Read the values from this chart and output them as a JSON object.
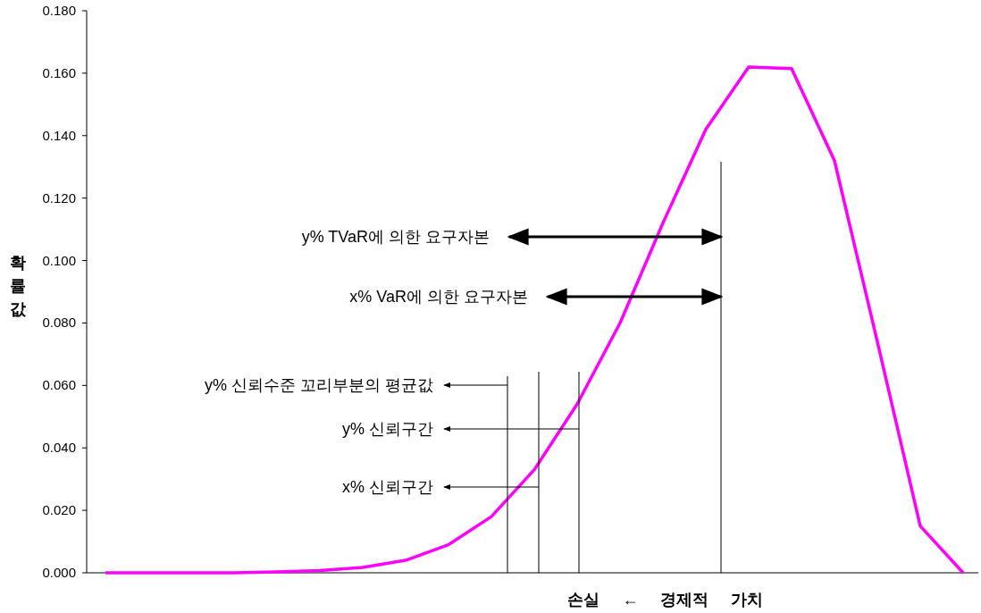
{
  "chart_data": {
    "type": "line",
    "ylabel": "확률값",
    "categories": [
      null,
      null,
      null,
      null,
      null,
      null,
      null,
      null,
      null,
      null,
      null,
      null,
      null,
      null,
      null,
      null,
      null,
      null,
      null,
      null,
      null
    ],
    "ylim": [
      0,
      0.18
    ],
    "yticks": [
      {
        "value": 0,
        "label": "0.000"
      },
      {
        "value": 0.02,
        "label": "0.020"
      },
      {
        "value": 0.04,
        "label": "0.040"
      },
      {
        "value": 0.06,
        "label": "0.060"
      },
      {
        "value": 0.08,
        "label": "0.080"
      },
      {
        "value": 0.1,
        "label": "0.100"
      },
      {
        "value": 0.12,
        "label": "0.120"
      },
      {
        "value": 0.14,
        "label": "0.140"
      },
      {
        "value": 0.16,
        "label": "0.160"
      },
      {
        "value": 0.18,
        "label": "0.180"
      }
    ],
    "tick_labels": "y",
    "series": [
      {
        "color": "#ff00ff",
        "values": [
          0,
          0,
          0,
          0,
          0.0003,
          0.0007,
          0.0017,
          0.004,
          0.009,
          0.018,
          0.033,
          0.054,
          0.08,
          0.112,
          0.142,
          0.162,
          0.1615,
          0.132,
          0.074,
          0.015,
          0
        ]
      }
    ],
    "annotations": [
      "y% TVaR에 의한 요구자본",
      "x% VaR에 의한 요구자본",
      "y% 신뢰수준 꼬리부분의 평균값",
      "y% 신뢰구간",
      "x% 신뢰구간",
      "손실 ← 경제적 가치"
    ]
  }
}
